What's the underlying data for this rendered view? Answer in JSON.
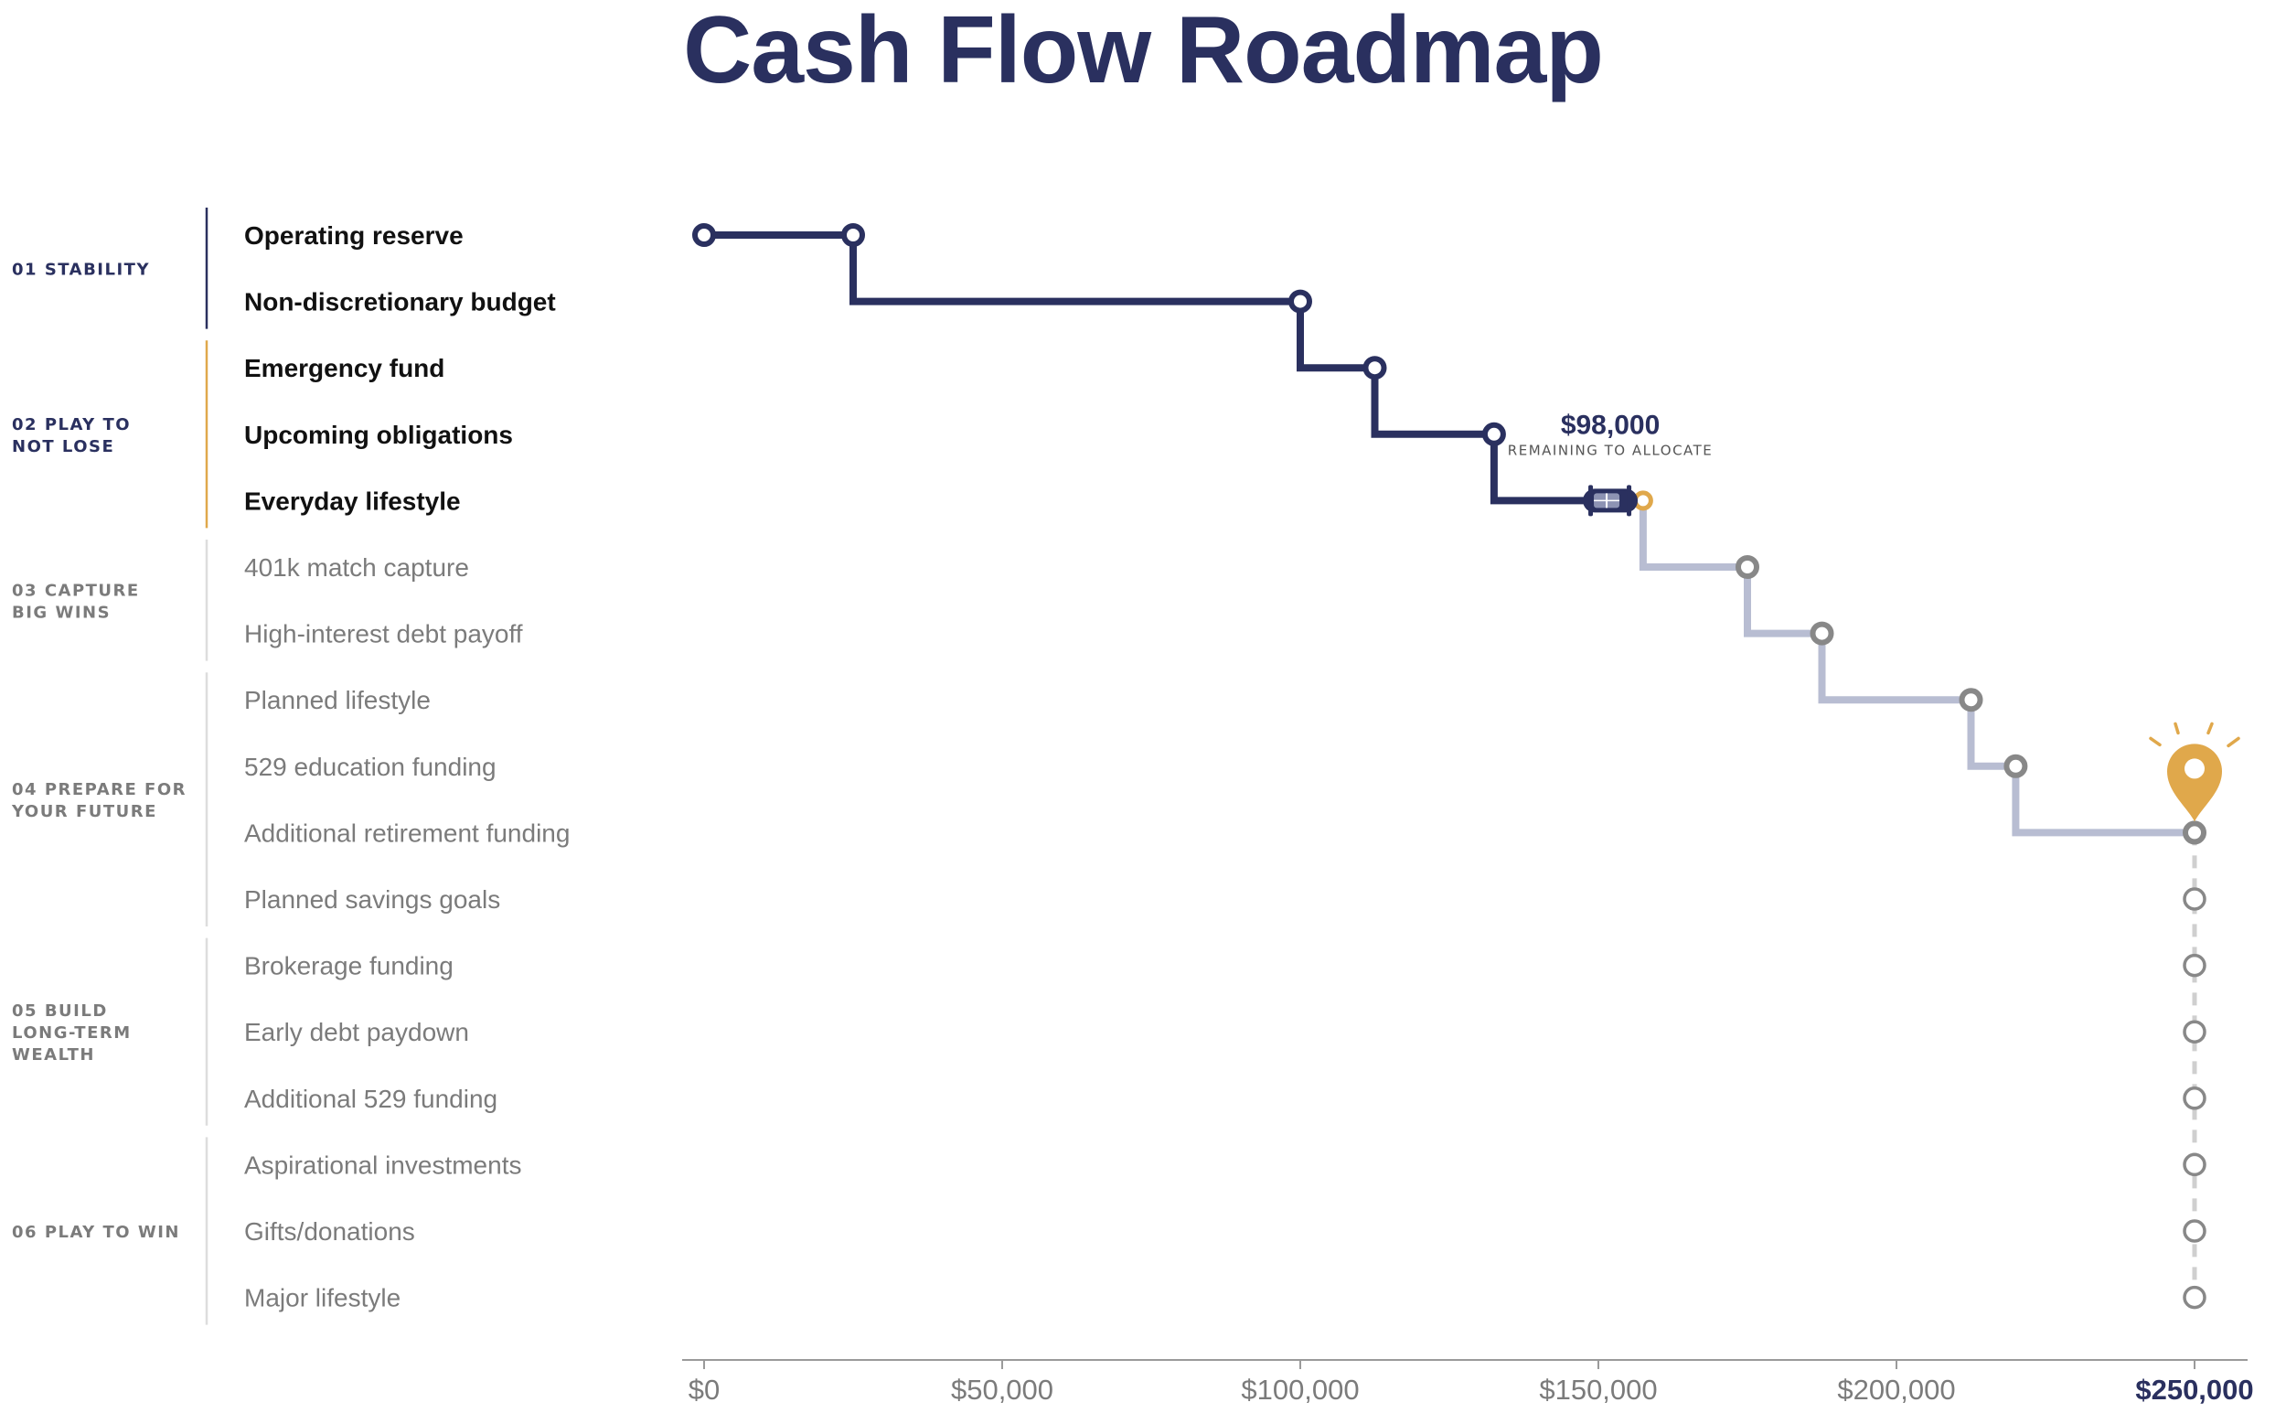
{
  "title": "Cash Flow Roadmap",
  "colors": {
    "navy": "#2a305f",
    "gold": "#e0a84b",
    "light_path": "#b8bdd2",
    "gray_node": "#888888",
    "gray_text": "#7b7b7b",
    "dashed_line": "#cfcfcf"
  },
  "callout": {
    "value": "$98,000",
    "caption": "REMAINING TO ALLOCATE"
  },
  "icons": {
    "current_position": "car-icon",
    "goal": "location-pin-icon",
    "goal_rays": "sparkle-rays-icon"
  },
  "chart_data": {
    "type": "step",
    "title": "Cash Flow Roadmap",
    "x_axis": {
      "range": [
        0,
        250000
      ],
      "ticks": [
        0,
        50000,
        100000,
        150000,
        200000,
        250000
      ],
      "tick_labels": [
        "$0",
        "$50,000",
        "$100,000",
        "$150,000",
        "$200,000",
        "$250,000"
      ],
      "highlighted_tick": "$250,000"
    },
    "phases": [
      {
        "label": "01 STABILITY",
        "lines": [
          "01 STABILITY"
        ],
        "rows": [
          0,
          1
        ],
        "status": "complete",
        "bar_color": "#2a305f"
      },
      {
        "label": "02 PLAY TO NOT LOSE",
        "lines": [
          "02 PLAY TO",
          "NOT LOSE"
        ],
        "rows": [
          2,
          4
        ],
        "status": "current",
        "bar_color": "#e0a84b"
      },
      {
        "label": "03 CAPTURE BIG WINS",
        "lines": [
          "03 CAPTURE",
          "BIG WINS"
        ],
        "rows": [
          5,
          6
        ],
        "status": "upcoming",
        "bar_color": "#dddddd"
      },
      {
        "label": "04 PREPARE FOR YOUR FUTURE",
        "lines": [
          "04 PREPARE FOR",
          "YOUR FUTURE"
        ],
        "rows": [
          7,
          10
        ],
        "status": "upcoming",
        "bar_color": "#dddddd"
      },
      {
        "label": "05 BUILD LONG-TERM WEALTH",
        "lines": [
          "05 BUILD",
          "LONG-TERM",
          "WEALTH"
        ],
        "rows": [
          11,
          13
        ],
        "status": "upcoming",
        "bar_color": "#dddddd"
      },
      {
        "label": "06 PLAY TO WIN",
        "lines": [
          "06 PLAY TO WIN"
        ],
        "rows": [
          14,
          16
        ],
        "status": "upcoming",
        "bar_color": "#dddddd"
      }
    ],
    "items": [
      {
        "label": "Operating reserve",
        "start": 0,
        "end": 25000,
        "status": "complete"
      },
      {
        "label": "Non-discretionary budget",
        "start": 25000,
        "end": 100000,
        "status": "complete"
      },
      {
        "label": "Emergency fund",
        "start": 100000,
        "end": 112500,
        "status": "complete"
      },
      {
        "label": "Upcoming obligations",
        "start": 112500,
        "end": 132500,
        "status": "complete"
      },
      {
        "label": "Everyday lifestyle",
        "start": 132500,
        "end": 157500,
        "status": "current",
        "progress_to": 152000
      },
      {
        "label": "401k match capture",
        "start": 157500,
        "end": 175000,
        "status": "upcoming"
      },
      {
        "label": "High-interest debt payoff",
        "start": 175000,
        "end": 187500,
        "status": "upcoming"
      },
      {
        "label": "Planned lifestyle",
        "start": 187500,
        "end": 212500,
        "status": "upcoming"
      },
      {
        "label": "529 education funding",
        "start": 212500,
        "end": 220000,
        "status": "upcoming"
      },
      {
        "label": "Additional retirement funding",
        "start": 220000,
        "end": 250000,
        "status": "upcoming"
      },
      {
        "label": "Planned savings goals",
        "start": 250000,
        "end": 250000,
        "status": "unfunded"
      },
      {
        "label": "Brokerage funding",
        "start": 250000,
        "end": 250000,
        "status": "unfunded"
      },
      {
        "label": "Early debt paydown",
        "start": 250000,
        "end": 250000,
        "status": "unfunded"
      },
      {
        "label": "Additional 529 funding",
        "start": 250000,
        "end": 250000,
        "status": "unfunded"
      },
      {
        "label": "Aspirational investments",
        "start": 250000,
        "end": 250000,
        "status": "unfunded"
      },
      {
        "label": "Gifts/donations",
        "start": 250000,
        "end": 250000,
        "status": "unfunded"
      },
      {
        "label": "Major lifestyle",
        "start": 250000,
        "end": 250000,
        "status": "unfunded"
      }
    ],
    "remaining_to_allocate": 98000,
    "goal_value": 250000
  }
}
